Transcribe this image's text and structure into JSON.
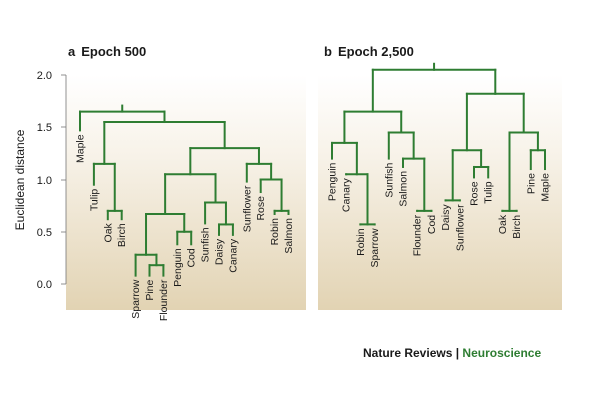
{
  "colors": {
    "branch": "#2e7d32",
    "text": "#1a1a1a",
    "panel_top": "#ffffff",
    "panel_bottom": "#e2d3b3"
  },
  "axis": {
    "label": "Euclidean distance",
    "ticks": [
      "2.0",
      "1.5",
      "1.0",
      "0.5",
      "0.0"
    ],
    "range": [
      0,
      2.0
    ]
  },
  "panel_a": {
    "letter": "a",
    "title": "Epoch 500"
  },
  "panel_b": {
    "letter": "b",
    "title": "Epoch 2,500"
  },
  "chart_data": [
    {
      "type": "dendrogram",
      "panel": "a",
      "title": "Epoch 500",
      "ylabel": "Euclidean distance",
      "ylim": [
        0,
        2.0
      ],
      "leaves": [
        "Maple",
        "Tulip",
        "Oak",
        "Birch",
        "Sparrow",
        "Pine",
        "Flounder",
        "Penguin",
        "Cod",
        "Sunfish",
        "Daisy",
        "Canary",
        "Sunflower",
        "Rose",
        "Robin",
        "Salmon"
      ],
      "leaf_heights": [
        1.47,
        0.95,
        0.62,
        0.62,
        0.08,
        0.08,
        0.08,
        0.38,
        0.38,
        0.58,
        0.47,
        0.47,
        0.98,
        0.88,
        0.67,
        0.67
      ],
      "merges": [
        {
          "members": [
            "Pine",
            "Flounder"
          ],
          "height": 0.18
        },
        {
          "members": [
            "Sparrow",
            "Pine",
            "Flounder"
          ],
          "height": 0.28
        },
        {
          "members": [
            "Penguin",
            "Cod"
          ],
          "height": 0.5
        },
        {
          "members": [
            "Daisy",
            "Canary"
          ],
          "height": 0.57
        },
        {
          "members": [
            "Robin",
            "Salmon"
          ],
          "height": 0.7
        },
        {
          "members": [
            "Oak",
            "Birch"
          ],
          "height": 0.7
        },
        {
          "members": [
            "Sunfish",
            "Daisy",
            "Canary"
          ],
          "height": 0.78
        },
        {
          "members": [
            "Sparrow",
            "Pine",
            "Flounder",
            "Penguin",
            "Cod"
          ],
          "height": 0.67
        },
        {
          "members": [
            "Rose",
            "Robin",
            "Salmon"
          ],
          "height": 1.0
        },
        {
          "members": [
            "Sparrow",
            "Pine",
            "Flounder",
            "Penguin",
            "Cod",
            "Sunfish",
            "Daisy",
            "Canary"
          ],
          "height": 1.05
        },
        {
          "members": [
            "Sunflower",
            "Rose",
            "Robin",
            "Salmon"
          ],
          "height": 1.15
        },
        {
          "members": [
            "Tulip",
            "Oak",
            "Birch"
          ],
          "height": 1.15
        },
        {
          "members": [
            "Sparrow",
            "Pine",
            "Flounder",
            "Penguin",
            "Cod",
            "Sunfish",
            "Daisy",
            "Canary",
            "Sunflower",
            "Rose",
            "Robin",
            "Salmon"
          ],
          "height": 1.3
        },
        {
          "members": [
            "Tulip",
            "Oak",
            "Birch",
            "Sparrow",
            "Pine",
            "Flounder",
            "Penguin",
            "Cod",
            "Sunfish",
            "Daisy",
            "Canary",
            "Sunflower",
            "Rose",
            "Robin",
            "Salmon"
          ],
          "height": 1.55
        },
        {
          "members": [
            "Maple",
            "Tulip",
            "Oak",
            "Birch",
            "Sparrow",
            "Pine",
            "Flounder",
            "Penguin",
            "Cod",
            "Sunfish",
            "Daisy",
            "Canary",
            "Sunflower",
            "Rose",
            "Robin",
            "Salmon"
          ],
          "height": 1.65
        }
      ]
    },
    {
      "type": "dendrogram",
      "panel": "b",
      "title": "Epoch 2,500",
      "ylabel": "Euclidean distance",
      "ylim": [
        0,
        2.0
      ],
      "leaves": [
        "Penguin",
        "Canary",
        "Robin",
        "Sparrow",
        "Sunfish",
        "Salmon",
        "Flounder",
        "Cod",
        "Daisy",
        "Sunflower",
        "Rose",
        "Tulip",
        "Oak",
        "Birch",
        "Pine",
        "Maple"
      ],
      "leaf_heights": [
        1.2,
        1.05,
        0.57,
        0.57,
        1.2,
        1.12,
        0.7,
        0.7,
        0.8,
        0.8,
        1.02,
        1.02,
        0.7,
        0.7,
        1.1,
        1.1
      ],
      "merges": [
        {
          "members": [
            "Robin",
            "Sparrow"
          ],
          "height": 0.57
        },
        {
          "members": [
            "Flounder",
            "Cod"
          ],
          "height": 0.7
        },
        {
          "members": [
            "Daisy",
            "Sunflower"
          ],
          "height": 0.8
        },
        {
          "members": [
            "Oak",
            "Birch"
          ],
          "height": 0.7
        },
        {
          "members": [
            "Rose",
            "Tulip"
          ],
          "height": 1.12
        },
        {
          "members": [
            "Pine",
            "Maple"
          ],
          "height": 1.28
        },
        {
          "members": [
            "Canary",
            "Robin",
            "Sparrow"
          ],
          "height": 1.05
        },
        {
          "members": [
            "Salmon",
            "Flounder",
            "Cod"
          ],
          "height": 1.2
        },
        {
          "members": [
            "Penguin",
            "Canary",
            "Robin",
            "Sparrow"
          ],
          "height": 1.35
        },
        {
          "members": [
            "Sunfish",
            "Salmon",
            "Flounder",
            "Cod"
          ],
          "height": 1.45
        },
        {
          "members": [
            "Daisy",
            "Sunflower",
            "Rose",
            "Tulip"
          ],
          "height": 1.28
        },
        {
          "members": [
            "Oak",
            "Birch",
            "Pine",
            "Maple"
          ],
          "height": 1.45
        },
        {
          "members": [
            "Daisy",
            "Sunflower",
            "Rose",
            "Tulip",
            "Oak",
            "Birch",
            "Pine",
            "Maple"
          ],
          "height": 1.82
        },
        {
          "members": [
            "Penguin",
            "Canary",
            "Robin",
            "Sparrow",
            "Sunfish",
            "Salmon",
            "Flounder",
            "Cod"
          ],
          "height": 1.65
        },
        {
          "members": [
            "Penguin",
            "Canary",
            "Robin",
            "Sparrow",
            "Sunfish",
            "Salmon",
            "Flounder",
            "Cod",
            "Daisy",
            "Sunflower",
            "Rose",
            "Tulip",
            "Oak",
            "Birch",
            "Pine",
            "Maple"
          ],
          "height": 2.05
        }
      ]
    }
  ],
  "credit": {
    "journal": "Nature Reviews",
    "separator": "|",
    "subject": "Neuroscience"
  }
}
